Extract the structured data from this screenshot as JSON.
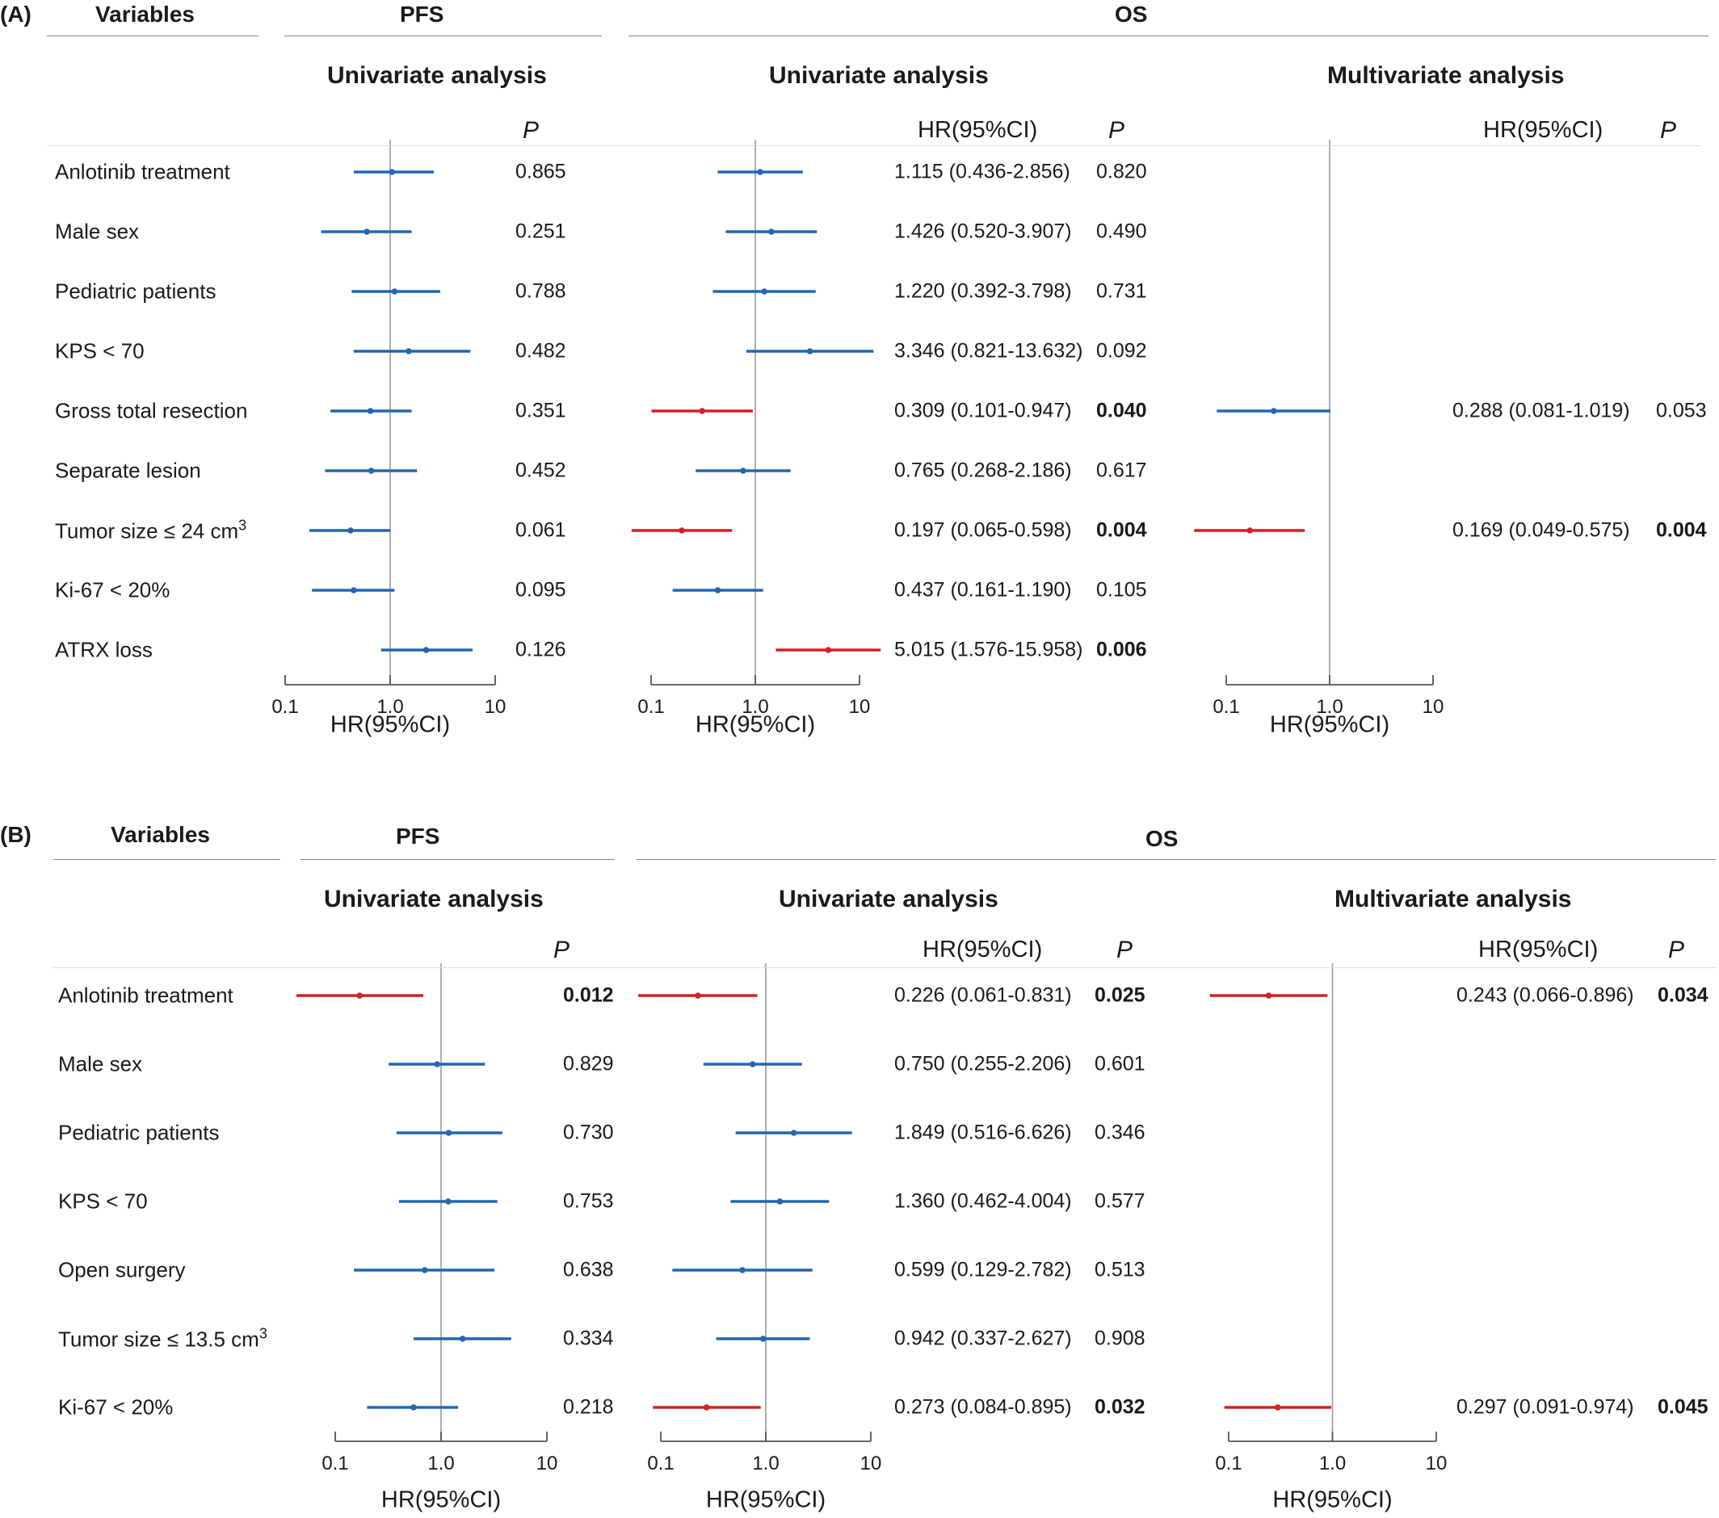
{
  "chart_data": [
    {
      "type": "forest",
      "panel_label": "(A)",
      "headers": {
        "variables": "Variables",
        "pfs": "PFS",
        "os": "OS"
      },
      "subheaders": {
        "pfs_univariate": "Univariate analysis",
        "os_univariate": "Univariate analysis",
        "os_multivariate": "Multivariate  analysis"
      },
      "column_headers": {
        "hr": "HR(95%CI)",
        "p": "P"
      },
      "variables": [
        "Anlotinib treatment",
        "Male sex",
        "Pediatric patients",
        "KPS < 70",
        "Gross total resection",
        "Separate lesion",
        "Tumor size ≤ 24 cm³",
        "Ki-67 < 20%",
        "ATRX loss"
      ],
      "xlabel": "HR(95%CI)",
      "x_scale": "log",
      "xlim": [
        0.1,
        10
      ],
      "x_ticks": [
        "0.1",
        "1.0",
        "10"
      ],
      "reference_line": 1.0,
      "colors": {
        "significant": "#d42020",
        "nonsignificant": "#2466b0",
        "reference_line": "#9a9a9a"
      },
      "series": [
        {
          "name": "PFS univariate",
          "rows": [
            {
              "variable": "Anlotinib treatment",
              "hr": 1.04,
              "lower": 0.45,
              "upper": 2.6,
              "p": "0.865",
              "significant": false
            },
            {
              "variable": "Male sex",
              "hr": 0.6,
              "lower": 0.22,
              "upper": 1.6,
              "p": "0.251",
              "significant": false
            },
            {
              "variable": "Pediatric patients",
              "hr": 1.1,
              "lower": 0.43,
              "upper": 3.0,
              "p": "0.788",
              "significant": false
            },
            {
              "variable": "KPS < 70",
              "hr": 1.5,
              "lower": 0.45,
              "upper": 5.8,
              "p": "0.482",
              "significant": false
            },
            {
              "variable": "Gross total resection",
              "hr": 0.65,
              "lower": 0.27,
              "upper": 1.6,
              "p": "0.351",
              "significant": false
            },
            {
              "variable": "Separate lesion",
              "hr": 0.66,
              "lower": 0.24,
              "upper": 1.8,
              "p": "0.452",
              "significant": false
            },
            {
              "variable": "Tumor size ≤ 24 cm³",
              "hr": 0.42,
              "lower": 0.17,
              "upper": 1.0,
              "p": "0.061",
              "significant": false
            },
            {
              "variable": "Ki-67 < 20%",
              "hr": 0.45,
              "lower": 0.18,
              "upper": 1.1,
              "p": "0.095",
              "significant": false
            },
            {
              "variable": "ATRX loss",
              "hr": 2.2,
              "lower": 0.82,
              "upper": 6.1,
              "p": "0.126",
              "significant": false
            }
          ]
        },
        {
          "name": "OS univariate",
          "rows": [
            {
              "variable": "Anlotinib treatment",
              "hr": 1.115,
              "lower": 0.436,
              "upper": 2.856,
              "ci_text": "1.115 (0.436-2.856)",
              "p": "0.820",
              "significant": false
            },
            {
              "variable": "Male sex",
              "hr": 1.426,
              "lower": 0.52,
              "upper": 3.907,
              "ci_text": "1.426 (0.520-3.907)",
              "p": "0.490",
              "significant": false
            },
            {
              "variable": "Pediatric patients",
              "hr": 1.22,
              "lower": 0.392,
              "upper": 3.798,
              "ci_text": "1.220 (0.392-3.798)",
              "p": "0.731",
              "significant": false
            },
            {
              "variable": "KPS < 70",
              "hr": 3.346,
              "lower": 0.821,
              "upper": 13.632,
              "ci_text": "3.346 (0.821-13.632)",
              "p": "0.092",
              "significant": false
            },
            {
              "variable": "Gross total resection",
              "hr": 0.309,
              "lower": 0.101,
              "upper": 0.947,
              "ci_text": "0.309 (0.101-0.947)",
              "p": "0.040",
              "significant": true
            },
            {
              "variable": "Separate lesion",
              "hr": 0.765,
              "lower": 0.268,
              "upper": 2.186,
              "ci_text": "0.765 (0.268-2.186)",
              "p": "0.617",
              "significant": false
            },
            {
              "variable": "Tumor size ≤ 24 cm³",
              "hr": 0.197,
              "lower": 0.065,
              "upper": 0.598,
              "ci_text": "0.197 (0.065-0.598)",
              "p": "0.004",
              "significant": true
            },
            {
              "variable": "Ki-67 < 20%",
              "hr": 0.437,
              "lower": 0.161,
              "upper": 1.19,
              "ci_text": "0.437 (0.161-1.190)",
              "p": "0.105",
              "significant": false
            },
            {
              "variable": "ATRX loss",
              "hr": 5.015,
              "lower": 1.576,
              "upper": 15.958,
              "ci_text": "5.015 (1.576-15.958)",
              "p": "0.006",
              "significant": true
            }
          ]
        },
        {
          "name": "OS multivariate",
          "rows": [
            {
              "variable": "Gross total resection",
              "hr": 0.288,
              "lower": 0.081,
              "upper": 1.019,
              "ci_text": "0.288 (0.081-1.019)",
              "p": "0.053",
              "significant": false
            },
            {
              "variable": "Tumor size ≤ 24 cm³",
              "hr": 0.169,
              "lower": 0.049,
              "upper": 0.575,
              "ci_text": "0.169 (0.049-0.575)",
              "p": "0.004",
              "significant": true
            }
          ]
        }
      ]
    },
    {
      "type": "forest",
      "panel_label": "(B)",
      "headers": {
        "variables": "Variables",
        "pfs": "PFS",
        "os": "OS"
      },
      "subheaders": {
        "pfs_univariate": "Univariate analysis",
        "os_univariate": "Univariate analysis",
        "os_multivariate": "Multivariate  analysis"
      },
      "column_headers": {
        "hr": "HR(95%CI)",
        "p": "P"
      },
      "variables": [
        "Anlotinib treatment",
        "Male sex",
        "Pediatric patients",
        "KPS < 70",
        "Open surgery",
        "Tumor size ≤ 13.5 cm³",
        "Ki-67 < 20%"
      ],
      "xlabel": "HR(95%CI)",
      "x_scale": "log",
      "xlim": [
        0.1,
        10
      ],
      "x_ticks": [
        "0.1",
        "1.0",
        "10"
      ],
      "reference_line": 1.0,
      "colors": {
        "significant": "#d42020",
        "nonsignificant": "#2466b0",
        "reference_line": "#9a9a9a"
      },
      "series": [
        {
          "name": "PFS univariate",
          "rows": [
            {
              "variable": "Anlotinib treatment",
              "hr": 0.17,
              "lower": 0.043,
              "upper": 0.68,
              "p": "0.012",
              "significant": true
            },
            {
              "variable": "Male sex",
              "hr": 0.92,
              "lower": 0.32,
              "upper": 2.6,
              "p": "0.829",
              "significant": false
            },
            {
              "variable": "Pediatric patients",
              "hr": 1.18,
              "lower": 0.38,
              "upper": 3.8,
              "p": "0.730",
              "significant": false
            },
            {
              "variable": "KPS < 70",
              "hr": 1.17,
              "lower": 0.4,
              "upper": 3.4,
              "p": "0.753",
              "significant": false
            },
            {
              "variable": "Open surgery",
              "hr": 0.7,
              "lower": 0.15,
              "upper": 3.2,
              "p": "0.638",
              "significant": false
            },
            {
              "variable": "Tumor size ≤ 13.5 cm³",
              "hr": 1.6,
              "lower": 0.55,
              "upper": 4.6,
              "p": "0.334",
              "significant": false
            },
            {
              "variable": "Ki-67 < 20%",
              "hr": 0.55,
              "lower": 0.2,
              "upper": 1.45,
              "p": "0.218",
              "significant": false
            }
          ]
        },
        {
          "name": "OS univariate",
          "rows": [
            {
              "variable": "Anlotinib treatment",
              "hr": 0.226,
              "lower": 0.061,
              "upper": 0.831,
              "ci_text": "0.226 (0.061-0.831)",
              "p": "0.025",
              "significant": true
            },
            {
              "variable": "Male sex",
              "hr": 0.75,
              "lower": 0.255,
              "upper": 2.206,
              "ci_text": "0.750 (0.255-2.206)",
              "p": "0.601",
              "significant": false
            },
            {
              "variable": "Pediatric patients",
              "hr": 1.849,
              "lower": 0.516,
              "upper": 6.626,
              "ci_text": "1.849 (0.516-6.626)",
              "p": "0.346",
              "significant": false
            },
            {
              "variable": "KPS < 70",
              "hr": 1.36,
              "lower": 0.462,
              "upper": 4.004,
              "ci_text": "1.360 (0.462-4.004)",
              "p": "0.577",
              "significant": false
            },
            {
              "variable": "Open surgery",
              "hr": 0.599,
              "lower": 0.129,
              "upper": 2.782,
              "ci_text": "0.599 (0.129-2.782)",
              "p": "0.513",
              "significant": false
            },
            {
              "variable": "Tumor size ≤ 13.5 cm³",
              "hr": 0.942,
              "lower": 0.337,
              "upper": 2.627,
              "ci_text": "0.942 (0.337-2.627)",
              "p": "0.908",
              "significant": false
            },
            {
              "variable": "Ki-67 < 20%",
              "hr": 0.273,
              "lower": 0.084,
              "upper": 0.895,
              "ci_text": "0.273 (0.084-0.895)",
              "p": "0.032",
              "significant": true
            }
          ]
        },
        {
          "name": "OS multivariate",
          "rows": [
            {
              "variable": "Anlotinib treatment",
              "hr": 0.243,
              "lower": 0.066,
              "upper": 0.896,
              "ci_text": "0.243 (0.066-0.896)",
              "p": "0.034",
              "significant": true
            },
            {
              "variable": "Ki-67 < 20%",
              "hr": 0.297,
              "lower": 0.091,
              "upper": 0.974,
              "ci_text": "0.297 (0.091-0.974)",
              "p": "0.045",
              "significant": true
            }
          ]
        }
      ]
    }
  ]
}
